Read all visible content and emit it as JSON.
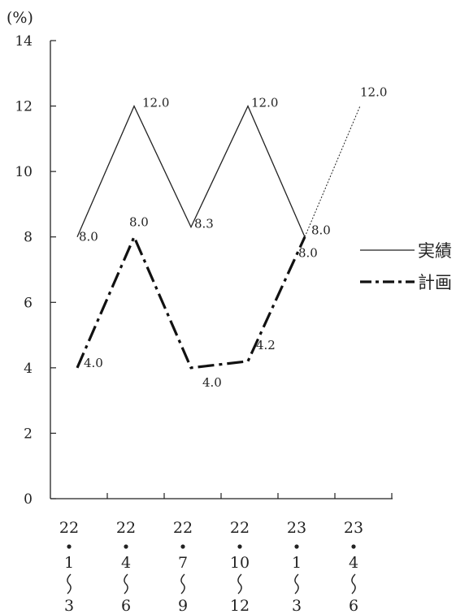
{
  "chart_data": {
    "type": "line",
    "unit_label": "(%)",
    "ylim": [
      0,
      14
    ],
    "y_ticks": [
      0,
      2,
      4,
      6,
      8,
      10,
      12,
      14
    ],
    "categories": [
      {
        "year": "22",
        "from": "1",
        "to": "3"
      },
      {
        "year": "22",
        "from": "4",
        "to": "6"
      },
      {
        "year": "22",
        "from": "7",
        "to": "9"
      },
      {
        "year": "22",
        "from": "10",
        "to": "12"
      },
      {
        "year": "23",
        "from": "1",
        "to": "3"
      },
      {
        "year": "23",
        "from": "4",
        "to": "6"
      }
    ],
    "series": [
      {
        "name": "実績",
        "style": "solid",
        "values": [
          8.0,
          12.0,
          8.3,
          12.0,
          8.0,
          null
        ],
        "labels": [
          "8.0",
          "12.0",
          "8.3",
          "12.0",
          "8.0",
          null
        ],
        "projection": {
          "value": 12.0,
          "label": "12.0"
        }
      },
      {
        "name": "計画",
        "style": "dash-dot-bold",
        "values": [
          4.0,
          8.0,
          4.0,
          4.2,
          8.0,
          null
        ],
        "labels": [
          "4.0",
          "8.0",
          "4.0",
          "4.2",
          "8.0",
          null
        ]
      }
    ],
    "grid": false,
    "legend": "right"
  }
}
